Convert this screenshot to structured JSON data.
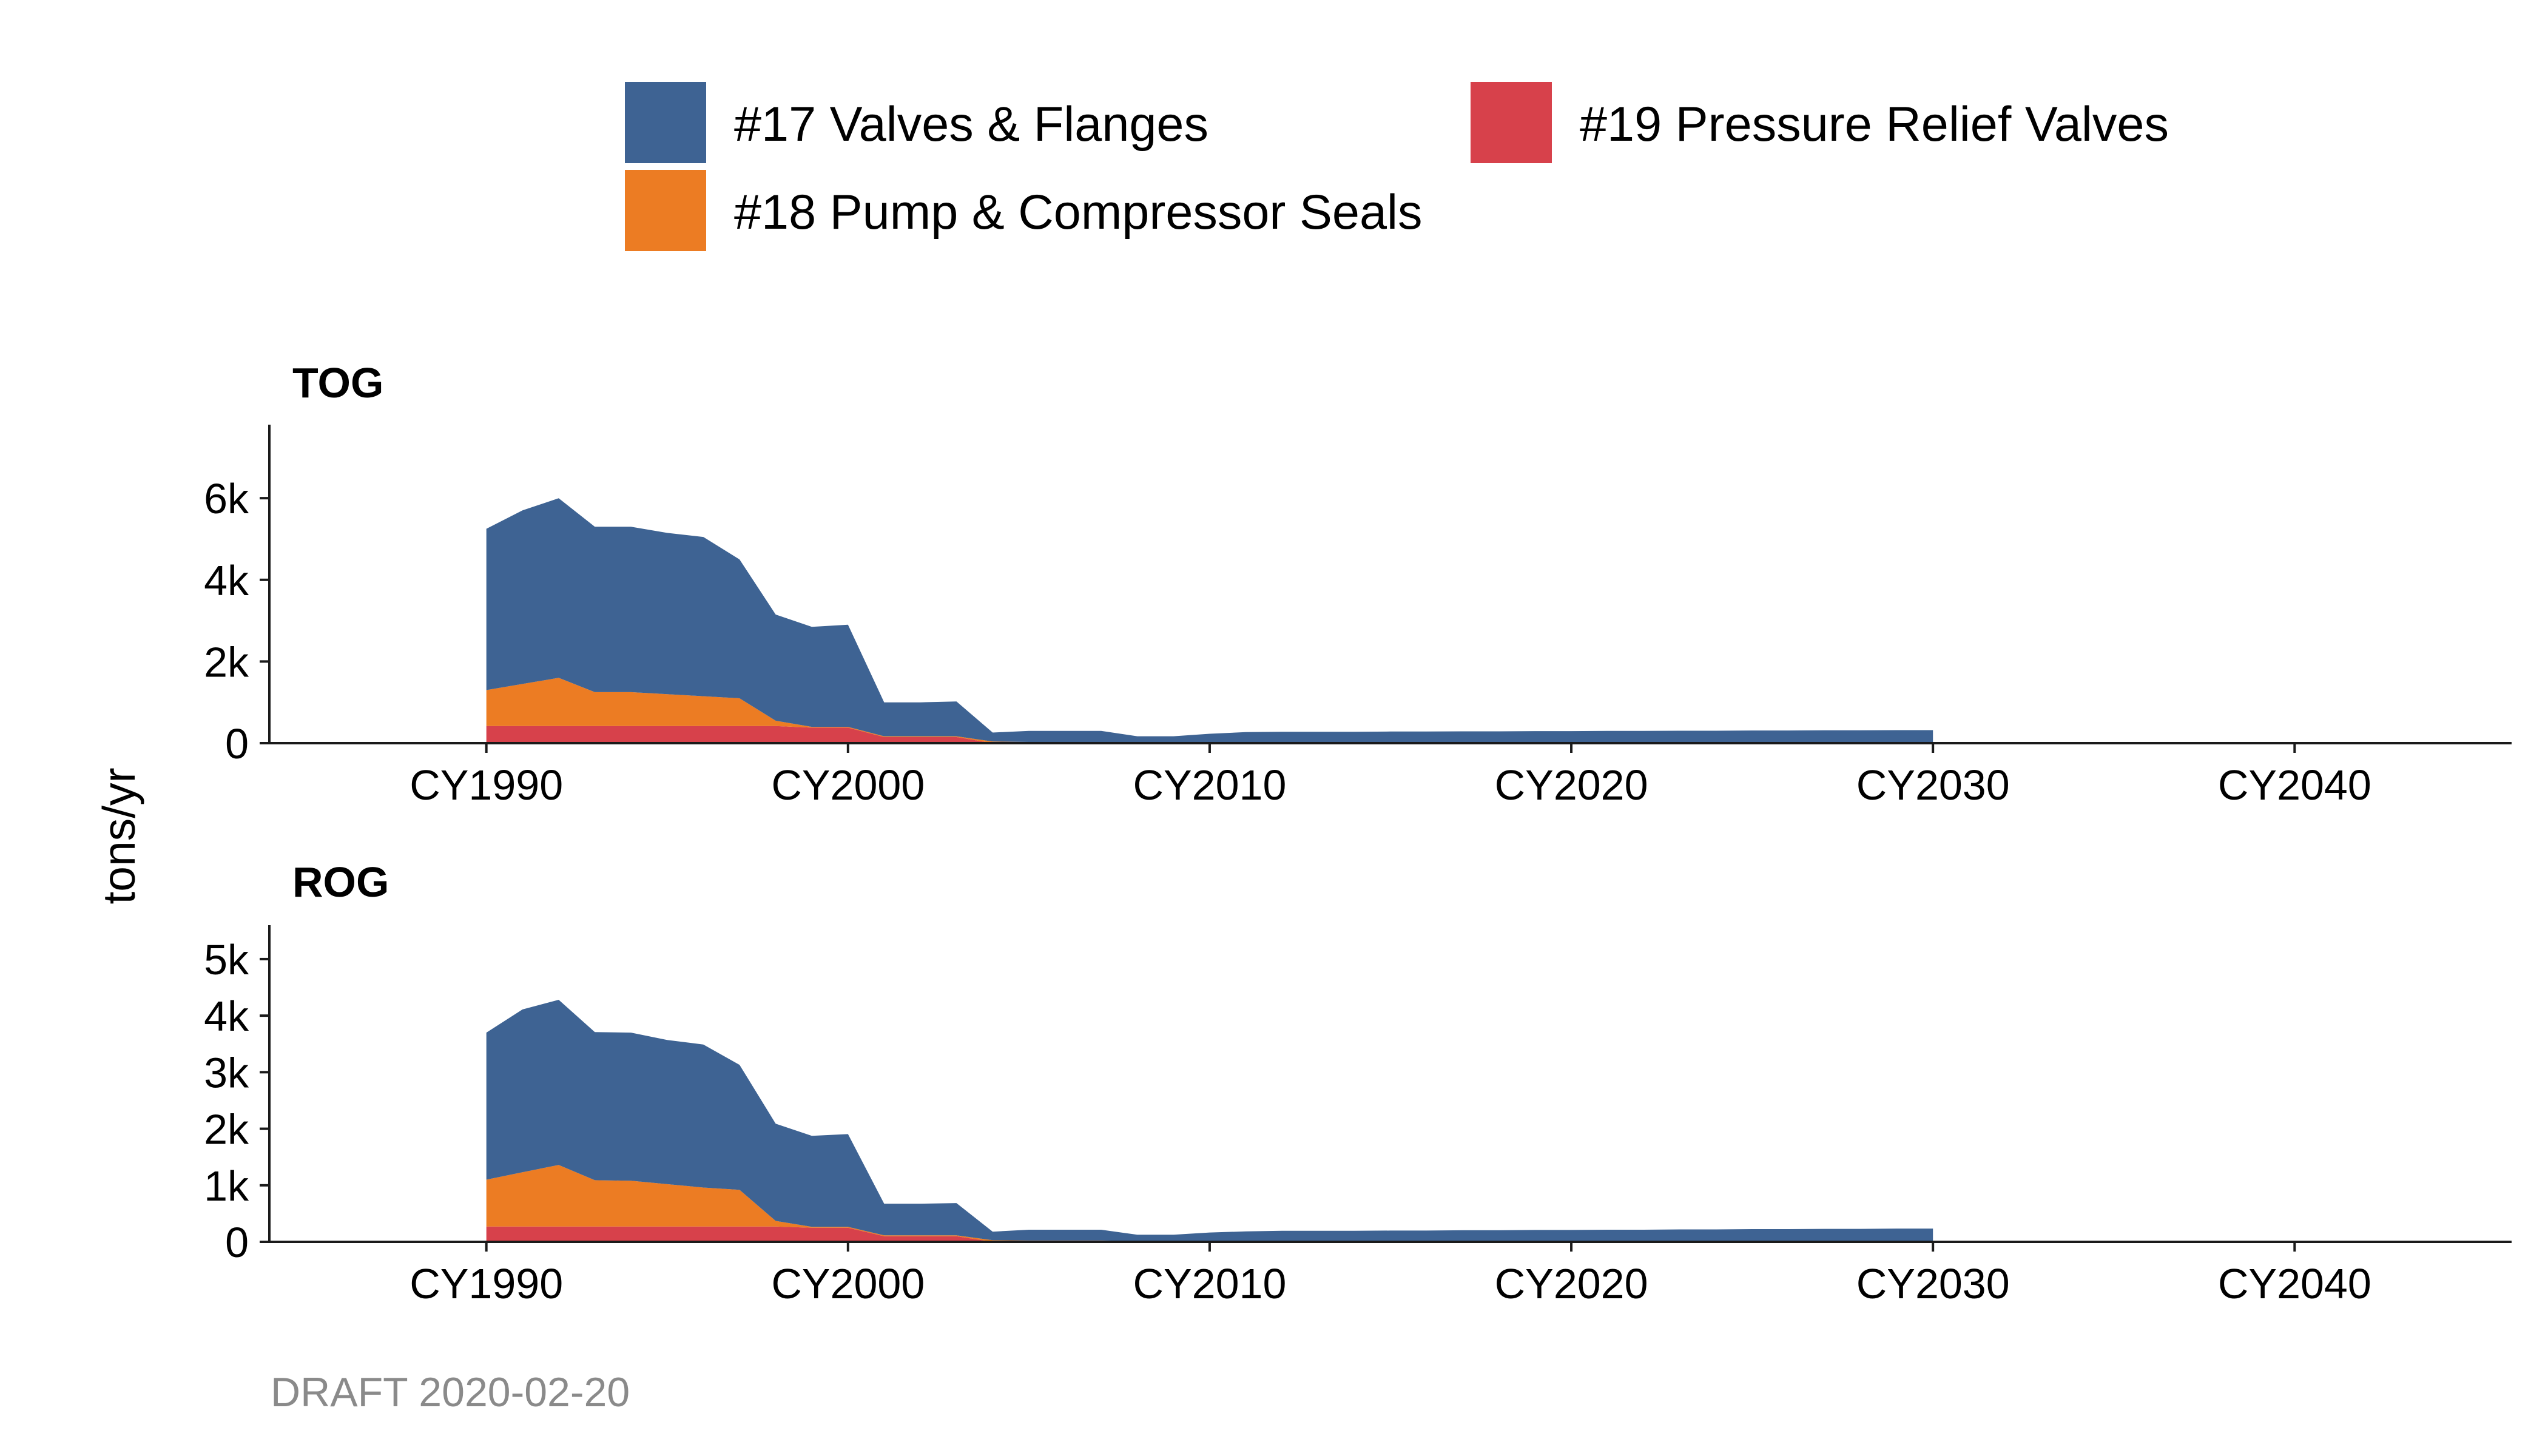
{
  "chart_data": {
    "type": "area",
    "stacked": true,
    "ylabel": "tons/yr",
    "caption": "DRAFT 2020-02-20",
    "legend": {
      "placement": "top",
      "entries": [
        {
          "name": "#17 Valves & Flanges",
          "color": "#3e6393"
        },
        {
          "name": "#19 Pressure Relief Valves",
          "color": "#d7414b"
        },
        {
          "name": "#18 Pump & Compressor Seals",
          "color": "#ec7c23"
        }
      ]
    },
    "x_ticks": [
      {
        "year": 1990,
        "label": "CY1990"
      },
      {
        "year": 2000,
        "label": "CY2000"
      },
      {
        "year": 2010,
        "label": "CY2010"
      },
      {
        "year": 2020,
        "label": "CY2020"
      },
      {
        "year": 2030,
        "label": "CY2030"
      },
      {
        "year": 2040,
        "label": "CY2040"
      }
    ],
    "xlim": [
      1984,
      2046
    ],
    "years": [
      1990,
      1991,
      1992,
      1993,
      1994,
      1995,
      1996,
      1997,
      1998,
      1999,
      2000,
      2001,
      2002,
      2003,
      2004,
      2005,
      2006,
      2007,
      2008,
      2009,
      2010,
      2011,
      2012,
      2013,
      2014,
      2015,
      2016,
      2017,
      2018,
      2019,
      2020,
      2021,
      2022,
      2023,
      2024,
      2025,
      2026,
      2027,
      2028,
      2029,
      2030
    ],
    "panels": [
      {
        "title": "TOG",
        "ylim": [
          0,
          7800
        ],
        "y_ticks": [
          {
            "value": 0,
            "label": "0"
          },
          {
            "value": 2000,
            "label": "2k"
          },
          {
            "value": 4000,
            "label": "4k"
          },
          {
            "value": 6000,
            "label": "6k"
          }
        ],
        "series": [
          {
            "name": "#19 Pressure Relief Valves",
            "color": "#d7414b",
            "values": [
              420,
              420,
              420,
              420,
              420,
              420,
              420,
              420,
              420,
              380,
              380,
              150,
              150,
              150,
              0,
              0,
              0,
              0,
              0,
              0,
              0,
              0,
              0,
              0,
              0,
              0,
              0,
              0,
              0,
              0,
              0,
              0,
              0,
              0,
              0,
              0,
              0,
              0,
              0,
              0,
              0
            ]
          },
          {
            "name": "#18 Pump & Compressor Seals",
            "color": "#ec7c23",
            "values": [
              880,
              1030,
              1180,
              830,
              830,
              780,
              730,
              680,
              130,
              20,
              20,
              20,
              20,
              20,
              40,
              30,
              30,
              30,
              20,
              20,
              20,
              20,
              20,
              20,
              20,
              20,
              20,
              20,
              20,
              20,
              20,
              20,
              20,
              20,
              20,
              20,
              20,
              20,
              20,
              20,
              20
            ]
          },
          {
            "name": "#17 Valves & Flanges",
            "color": "#3e6393",
            "values": [
              3950,
              4250,
              4400,
              4050,
              4050,
              3950,
              3900,
              3400,
              2600,
              2450,
              2500,
              830,
              830,
              850,
              220,
              270,
              270,
              270,
              150,
              150,
              210,
              250,
              260,
              260,
              260,
              265,
              265,
              270,
              270,
              275,
              275,
              280,
              280,
              285,
              285,
              290,
              290,
              295,
              295,
              300,
              300
            ]
          }
        ]
      },
      {
        "title": "ROG",
        "ylim": [
          0,
          5600
        ],
        "y_ticks": [
          {
            "value": 0,
            "label": "0"
          },
          {
            "value": 1000,
            "label": "1k"
          },
          {
            "value": 2000,
            "label": "2k"
          },
          {
            "value": 3000,
            "label": "3k"
          },
          {
            "value": 4000,
            "label": "4k"
          },
          {
            "value": 5000,
            "label": "5k"
          }
        ],
        "series": [
          {
            "name": "#19 Pressure Relief Valves",
            "color": "#d7414b",
            "values": [
              270,
              270,
              270,
              270,
              270,
              270,
              270,
              270,
              270,
              250,
              250,
              100,
              100,
              100,
              0,
              0,
              0,
              0,
              0,
              0,
              0,
              0,
              0,
              0,
              0,
              0,
              0,
              0,
              0,
              0,
              0,
              0,
              0,
              0,
              0,
              0,
              0,
              0,
              0,
              0,
              0
            ]
          },
          {
            "name": "#18 Pump & Compressor Seals",
            "color": "#ec7c23",
            "values": [
              830,
              960,
              1090,
              820,
              810,
              750,
              690,
              650,
              100,
              15,
              15,
              15,
              15,
              15,
              30,
              25,
              25,
              25,
              15,
              15,
              15,
              15,
              15,
              15,
              15,
              15,
              15,
              15,
              15,
              15,
              15,
              15,
              15,
              15,
              15,
              15,
              15,
              15,
              15,
              15,
              15
            ]
          },
          {
            "name": "#17 Valves & Flanges",
            "color": "#3e6393",
            "values": [
              2600,
              2880,
              2920,
              2620,
              2620,
              2550,
              2530,
              2210,
              1720,
              1610,
              1640,
              560,
              560,
              570,
              150,
              190,
              190,
              190,
              110,
              110,
              150,
              170,
              180,
              180,
              180,
              185,
              185,
              190,
              190,
              195,
              195,
              200,
              200,
              205,
              205,
              210,
              210,
              215,
              215,
              220,
              220
            ]
          }
        ]
      }
    ]
  }
}
